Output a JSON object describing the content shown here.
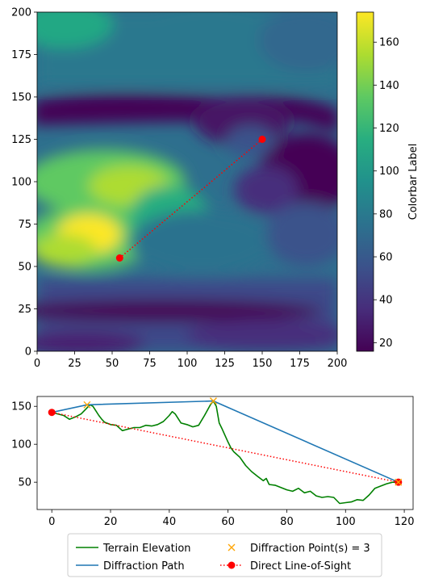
{
  "chart_data": [
    {
      "type": "heatmap",
      "colormap": "viridis",
      "xlim": [
        0,
        200
      ],
      "ylim": [
        0,
        200
      ],
      "x_ticks": [
        "0",
        "25",
        "50",
        "75",
        "100",
        "125",
        "150",
        "175",
        "200"
      ],
      "y_ticks": [
        "0",
        "25",
        "50",
        "75",
        "100",
        "125",
        "150",
        "175",
        "200"
      ],
      "grid": false,
      "line_of_sight": {
        "color": "#ff0000",
        "style": "dotted",
        "start": {
          "x": 55,
          "y": 55
        },
        "end": {
          "x": 150,
          "y": 125
        }
      },
      "colorbar": {
        "label": "Colorbar Label",
        "range": [
          16,
          174
        ],
        "ticks": [
          "20",
          "40",
          "60",
          "80",
          "100",
          "120",
          "140",
          "160"
        ]
      }
    },
    {
      "type": "line",
      "xlim": [
        -5,
        123
      ],
      "ylim": [
        14,
        163
      ],
      "x_ticks": [
        "0",
        "20",
        "40",
        "60",
        "80",
        "100",
        "120"
      ],
      "y_ticks": [
        "50",
        "100",
        "150"
      ],
      "grid": false,
      "legend_position": "below",
      "series": [
        {
          "name": "Terrain Elevation",
          "color": "#008000",
          "style": "solid",
          "x": [
            0,
            2,
            4,
            6,
            8,
            10,
            12,
            13,
            14,
            16,
            17,
            18,
            20,
            22,
            24,
            26,
            28,
            30,
            32,
            34,
            36,
            38,
            40,
            41,
            42,
            44,
            46,
            48,
            50,
            52,
            54,
            55,
            56,
            57,
            58,
            60,
            61,
            62,
            64,
            66,
            68,
            70,
            72,
            73,
            74,
            76,
            78,
            80,
            82,
            84,
            86,
            88,
            90,
            92,
            94,
            96,
            98,
            100,
            102,
            104,
            106,
            108,
            110,
            112,
            114,
            116,
            118
          ],
          "y": [
            142,
            140,
            138,
            133,
            136,
            140,
            148,
            152,
            150,
            138,
            133,
            129,
            126,
            125,
            118,
            120,
            122,
            122,
            125,
            124,
            126,
            130,
            138,
            143,
            140,
            128,
            126,
            123,
            125,
            138,
            152,
            157,
            150,
            128,
            120,
            103,
            95,
            90,
            83,
            72,
            64,
            58,
            52,
            55,
            47,
            46,
            43,
            40,
            38,
            42,
            36,
            38,
            32,
            30,
            31,
            30,
            22,
            23,
            24,
            27,
            26,
            33,
            42,
            45,
            48,
            50,
            50
          ]
        },
        {
          "name": "Diffraction Path",
          "color": "#1f77b4",
          "style": "solid",
          "x": [
            0,
            12,
            55,
            118
          ],
          "y": [
            142,
            152,
            157,
            50
          ]
        },
        {
          "name": "Diffraction Point(s) = 3",
          "color": "#ffa500",
          "marker": "x",
          "x": [
            12,
            55,
            118
          ],
          "y": [
            152,
            157,
            50
          ]
        },
        {
          "name": "Direct Line-of-Sight",
          "color": "#ff0000",
          "style": "dotted",
          "marker": "o",
          "x": [
            0,
            118
          ],
          "y": [
            142,
            50
          ]
        }
      ]
    }
  ]
}
